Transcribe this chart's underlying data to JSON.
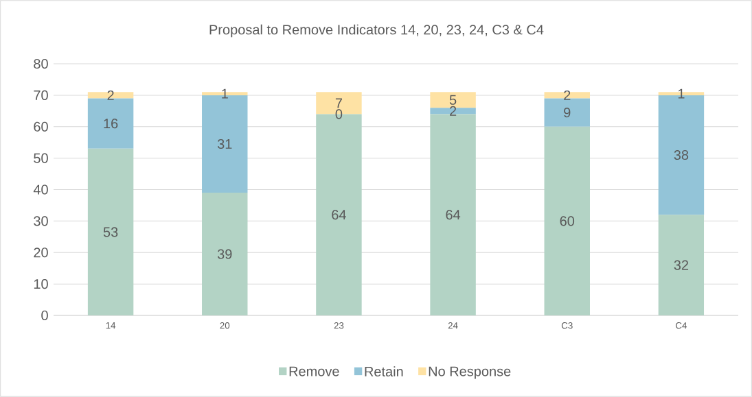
{
  "chart_data": {
    "type": "bar",
    "stacked": true,
    "title": "Proposal to Remove Indicators 14, 20, 23, 24, C3 & C4",
    "categories": [
      "14",
      "20",
      "23",
      "24",
      "C3",
      "C4"
    ],
    "series": [
      {
        "name": "Remove",
        "color": "#b3d3c5",
        "values": [
          53,
          39,
          64,
          64,
          60,
          32
        ]
      },
      {
        "name": "Retain",
        "color": "#93c4d8",
        "values": [
          16,
          31,
          0,
          2,
          9,
          38
        ]
      },
      {
        "name": "No Response",
        "color": "#fee2a4",
        "values": [
          2,
          1,
          7,
          5,
          2,
          1
        ]
      }
    ],
    "ylim": [
      0,
      80
    ],
    "yticks": [
      0,
      10,
      20,
      30,
      40,
      50,
      60,
      70,
      80
    ],
    "grid": "y",
    "legend": "bottom",
    "data_labels": true
  }
}
